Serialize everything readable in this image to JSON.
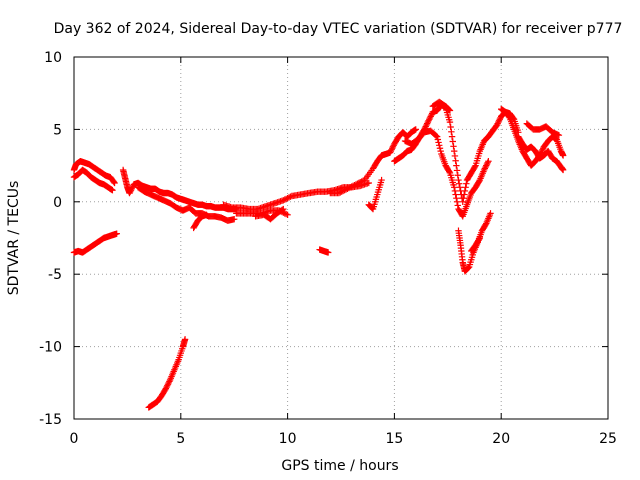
{
  "chart_data": {
    "type": "scatter",
    "title": "Day 362 of 2024, Sidereal Day-to-day VTEC variation (SDTVAR) for receiver p777",
    "xlabel": "GPS time / hours",
    "ylabel": "SDTVAR / TECUs",
    "xlim": [
      0,
      25
    ],
    "ylim": [
      -15,
      10
    ],
    "xticks": [
      0,
      5,
      10,
      15,
      20,
      25
    ],
    "yticks": [
      -15,
      -10,
      -5,
      0,
      5,
      10
    ],
    "xtick_labels": [
      "0",
      "5",
      "10",
      "15",
      "20",
      "25"
    ],
    "ytick_labels": [
      "-15",
      "-10",
      "-5",
      "0",
      "5",
      "10"
    ],
    "grid": true,
    "marker": "plus",
    "color": "#ff0000",
    "series": [
      {
        "name": "SDTVAR",
        "segments": [
          [
            [
              0.0,
              2.2
            ],
            [
              0.1,
              2.6
            ],
            [
              0.3,
              2.8
            ],
            [
              0.5,
              2.7
            ],
            [
              0.7,
              2.6
            ],
            [
              0.9,
              2.4
            ],
            [
              1.1,
              2.2
            ],
            [
              1.3,
              2.0
            ],
            [
              1.5,
              1.8
            ],
            [
              1.7,
              1.7
            ],
            [
              1.9,
              1.3
            ]
          ],
          [
            [
              0.0,
              1.7
            ],
            [
              0.2,
              1.9
            ],
            [
              0.4,
              2.2
            ],
            [
              0.6,
              2.0
            ],
            [
              0.8,
              1.7
            ],
            [
              1.0,
              1.5
            ],
            [
              1.2,
              1.3
            ],
            [
              1.4,
              1.2
            ],
            [
              1.6,
              1.0
            ],
            [
              1.8,
              0.8
            ]
          ],
          [
            [
              0.0,
              -3.5
            ],
            [
              0.2,
              -3.4
            ],
            [
              0.4,
              -3.5
            ],
            [
              0.6,
              -3.3
            ],
            [
              0.8,
              -3.1
            ],
            [
              1.0,
              -2.9
            ],
            [
              1.2,
              -2.7
            ],
            [
              1.4,
              -2.5
            ],
            [
              1.6,
              -2.4
            ],
            [
              1.8,
              -2.3
            ],
            [
              2.0,
              -2.2
            ]
          ],
          [
            [
              2.3,
              2.2
            ],
            [
              2.4,
              1.6
            ],
            [
              2.5,
              1.0
            ],
            [
              2.6,
              0.6
            ],
            [
              2.8,
              1.2
            ],
            [
              3.0,
              1.3
            ],
            [
              3.2,
              1.1
            ],
            [
              3.4,
              1.0
            ],
            [
              3.6,
              0.9
            ],
            [
              3.8,
              0.9
            ],
            [
              4.0,
              0.7
            ],
            [
              4.2,
              0.6
            ],
            [
              4.4,
              0.6
            ],
            [
              4.6,
              0.5
            ],
            [
              4.8,
              0.3
            ],
            [
              5.0,
              0.2
            ],
            [
              5.2,
              0.1
            ],
            [
              5.4,
              0.0
            ],
            [
              5.6,
              -0.1
            ],
            [
              5.8,
              -0.2
            ],
            [
              6.0,
              -0.2
            ],
            [
              6.2,
              -0.3
            ],
            [
              6.4,
              -0.3
            ],
            [
              6.6,
              -0.4
            ],
            [
              6.8,
              -0.4
            ],
            [
              7.0,
              -0.4
            ],
            [
              7.2,
              -0.5
            ],
            [
              7.4,
              -0.5
            ],
            [
              7.6,
              -0.5
            ]
          ],
          [
            [
              3.0,
              1.0
            ],
            [
              3.3,
              0.7
            ],
            [
              3.6,
              0.5
            ],
            [
              3.9,
              0.3
            ],
            [
              4.2,
              0.1
            ],
            [
              4.5,
              -0.1
            ],
            [
              4.8,
              -0.4
            ],
            [
              5.1,
              -0.6
            ],
            [
              5.4,
              -0.4
            ],
            [
              5.7,
              -0.8
            ],
            [
              6.0,
              -0.8
            ],
            [
              6.3,
              -1.0
            ],
            [
              6.6,
              -1.0
            ],
            [
              6.9,
              -1.1
            ],
            [
              7.2,
              -1.3
            ],
            [
              7.5,
              -1.2
            ]
          ],
          [
            [
              5.6,
              -1.8
            ],
            [
              5.8,
              -1.3
            ],
            [
              6.0,
              -1.0
            ],
            [
              6.2,
              -0.9
            ]
          ],
          [
            [
              7.0,
              -0.2
            ],
            [
              7.4,
              -0.4
            ],
            [
              7.8,
              -0.4
            ],
            [
              8.2,
              -0.5
            ],
            [
              8.6,
              -0.5
            ],
            [
              9.0,
              -0.3
            ],
            [
              9.4,
              -0.1
            ],
            [
              9.8,
              0.1
            ],
            [
              10.2,
              0.4
            ],
            [
              10.6,
              0.5
            ],
            [
              11.0,
              0.6
            ],
            [
              11.4,
              0.7
            ],
            [
              11.8,
              0.7
            ],
            [
              12.2,
              0.8
            ],
            [
              12.6,
              1.0
            ],
            [
              13.0,
              1.0
            ],
            [
              13.4,
              1.1
            ],
            [
              13.8,
              1.3
            ]
          ],
          [
            [
              7.6,
              -0.8
            ],
            [
              8.0,
              -0.8
            ],
            [
              8.4,
              -0.8
            ],
            [
              8.8,
              -0.8
            ],
            [
              9.2,
              -0.6
            ],
            [
              9.6,
              -0.6
            ],
            [
              10.0,
              -0.9
            ]
          ],
          [
            [
              8.5,
              -1.0
            ],
            [
              8.9,
              -0.9
            ],
            [
              9.2,
              -1.2
            ],
            [
              9.5,
              -0.8
            ],
            [
              9.8,
              -0.5
            ]
          ],
          [
            [
              11.5,
              -3.3
            ],
            [
              11.7,
              -3.4
            ],
            [
              11.9,
              -3.5
            ]
          ],
          [
            [
              12.0,
              0.6
            ],
            [
              12.4,
              0.6
            ],
            [
              12.8,
              0.9
            ],
            [
              13.2,
              1.2
            ],
            [
              13.6,
              1.5
            ],
            [
              14.0,
              2.3
            ],
            [
              14.2,
              2.8
            ],
            [
              14.4,
              3.2
            ],
            [
              14.6,
              3.3
            ],
            [
              14.8,
              3.4
            ],
            [
              15.0,
              4.0
            ],
            [
              15.2,
              4.5
            ],
            [
              15.4,
              4.8
            ],
            [
              15.6,
              4.5
            ],
            [
              15.8,
              4.8
            ],
            [
              16.0,
              5.0
            ]
          ],
          [
            [
              13.8,
              -0.2
            ],
            [
              14.0,
              -0.5
            ],
            [
              14.2,
              0.5
            ],
            [
              14.4,
              1.5
            ]
          ],
          [
            [
              15.0,
              2.8
            ],
            [
              15.2,
              3.0
            ],
            [
              15.4,
              3.2
            ],
            [
              15.6,
              3.5
            ],
            [
              15.8,
              3.6
            ],
            [
              16.0,
              4.0
            ],
            [
              16.2,
              4.5
            ],
            [
              16.4,
              5.0
            ],
            [
              16.6,
              5.6
            ],
            [
              16.8,
              6.2
            ],
            [
              17.0,
              6.3
            ],
            [
              17.2,
              6.7
            ],
            [
              17.4,
              6.5
            ],
            [
              17.6,
              5.5
            ],
            [
              17.8,
              3.5
            ],
            [
              18.0,
              1.5
            ],
            [
              18.2,
              0.0
            ],
            [
              18.4,
              1.5
            ],
            [
              18.6,
              2.0
            ],
            [
              18.8,
              2.5
            ],
            [
              19.0,
              3.5
            ],
            [
              19.2,
              4.2
            ],
            [
              19.4,
              4.5
            ],
            [
              19.6,
              4.9
            ],
            [
              19.8,
              5.3
            ],
            [
              20.0,
              5.9
            ],
            [
              20.2,
              6.2
            ],
            [
              20.4,
              6.1
            ],
            [
              20.6,
              5.7
            ],
            [
              20.8,
              4.8
            ]
          ],
          [
            [
              15.5,
              4.2
            ],
            [
              15.8,
              4.0
            ],
            [
              16.1,
              4.3
            ],
            [
              16.4,
              4.8
            ],
            [
              16.7,
              4.9
            ],
            [
              17.0,
              4.5
            ],
            [
              17.2,
              3.3
            ],
            [
              17.4,
              2.5
            ],
            [
              17.6,
              2.0
            ],
            [
              17.8,
              1.0
            ],
            [
              18.0,
              -0.5
            ],
            [
              18.2,
              -1.0
            ],
            [
              18.4,
              -0.2
            ],
            [
              18.6,
              0.6
            ],
            [
              18.8,
              1.0
            ],
            [
              19.0,
              1.5
            ],
            [
              19.2,
              2.2
            ],
            [
              19.4,
              2.8
            ]
          ],
          [
            [
              16.8,
              6.6
            ],
            [
              17.1,
              6.9
            ],
            [
              17.4,
              6.6
            ],
            [
              17.6,
              6.3
            ]
          ],
          [
            [
              18.0,
              -2.0
            ],
            [
              18.1,
              -3.0
            ],
            [
              18.2,
              -4.2
            ],
            [
              18.3,
              -4.8
            ],
            [
              18.5,
              -4.5
            ],
            [
              18.7,
              -3.5
            ],
            [
              18.9,
              -2.8
            ],
            [
              19.1,
              -2.0
            ],
            [
              19.3,
              -1.5
            ],
            [
              19.5,
              -0.8
            ]
          ],
          [
            [
              18.6,
              -3.4
            ],
            [
              18.8,
              -3.0
            ],
            [
              19.0,
              -2.5
            ]
          ],
          [
            [
              20.0,
              6.4
            ],
            [
              20.2,
              6.2
            ],
            [
              20.4,
              5.8
            ],
            [
              20.6,
              5.0
            ],
            [
              20.8,
              4.2
            ],
            [
              21.0,
              3.5
            ],
            [
              21.2,
              3.0
            ],
            [
              21.4,
              2.5
            ],
            [
              21.6,
              2.8
            ],
            [
              21.8,
              3.2
            ],
            [
              22.0,
              3.8
            ],
            [
              22.2,
              4.2
            ],
            [
              22.4,
              4.5
            ],
            [
              22.6,
              4.3
            ],
            [
              22.8,
              3.5
            ],
            [
              22.9,
              3.2
            ]
          ],
          [
            [
              20.8,
              4.5
            ],
            [
              21.0,
              4.0
            ],
            [
              21.2,
              3.6
            ],
            [
              21.4,
              3.8
            ],
            [
              21.6,
              3.5
            ],
            [
              21.8,
              3.0
            ],
            [
              22.0,
              3.2
            ],
            [
              22.2,
              3.5
            ],
            [
              22.4,
              3.0
            ],
            [
              22.6,
              2.8
            ],
            [
              22.8,
              2.4
            ],
            [
              22.9,
              2.2
            ]
          ],
          [
            [
              21.2,
              5.4
            ],
            [
              21.5,
              5.0
            ],
            [
              21.8,
              5.0
            ],
            [
              22.1,
              5.2
            ],
            [
              22.4,
              4.8
            ],
            [
              22.7,
              4.6
            ]
          ],
          [
            [
              3.5,
              -14.2
            ],
            [
              3.7,
              -14.0
            ],
            [
              3.9,
              -13.8
            ],
            [
              4.1,
              -13.4
            ],
            [
              4.3,
              -12.9
            ],
            [
              4.5,
              -12.3
            ],
            [
              4.7,
              -11.6
            ],
            [
              4.9,
              -10.9
            ],
            [
              5.1,
              -10.0
            ],
            [
              5.2,
              -9.5
            ]
          ]
        ]
      }
    ]
  }
}
